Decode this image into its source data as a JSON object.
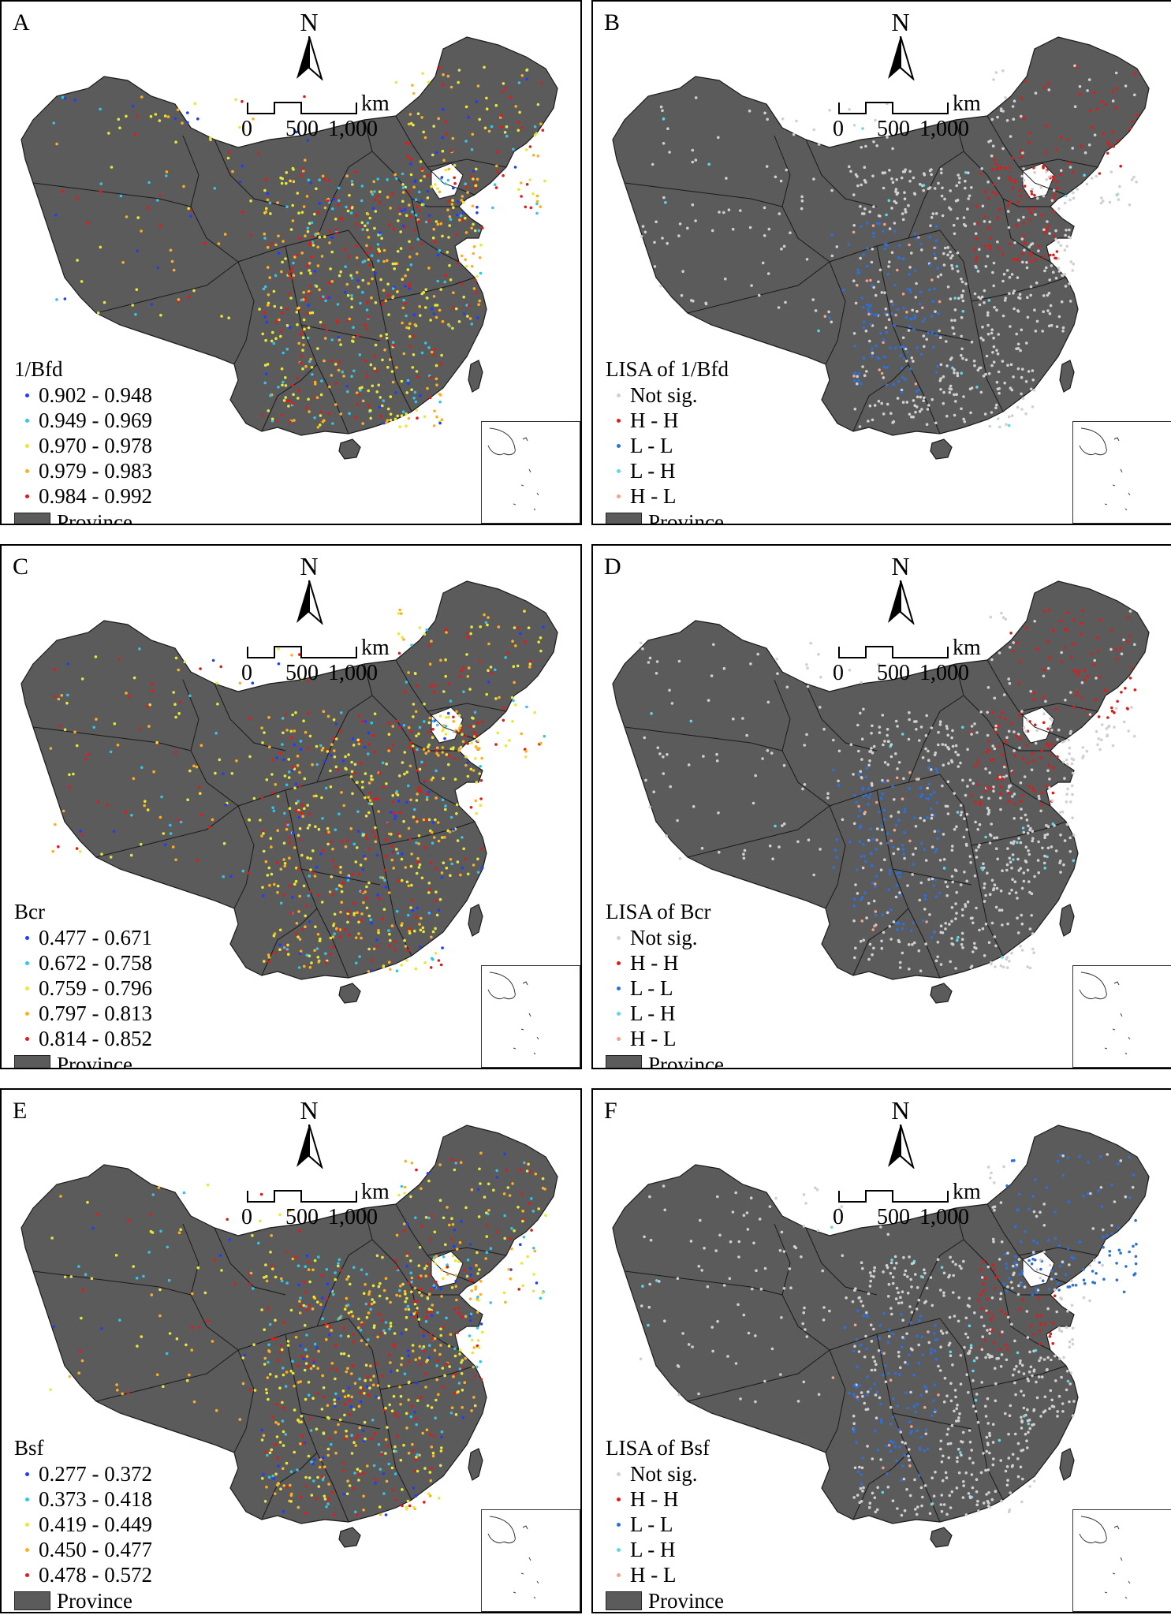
{
  "compass_label": "N",
  "scale": {
    "unit": "km",
    "ticks": [
      "0",
      "500",
      "1,000"
    ]
  },
  "province_label": "Province",
  "colors": {
    "land": "#5b5b5b",
    "border": "#1a1a1a",
    "blue": "#1f3cff",
    "cyan": "#33c4e8",
    "yellow": "#e8e83a",
    "orange": "#ffb020",
    "red": "#e21a1a",
    "notsig": "#d0d0d0",
    "hh": "#d91e1e",
    "ll": "#2f6fd8",
    "lh": "#5fd8ea",
    "hl": "#f2a38a"
  },
  "panels": [
    {
      "letter": "A",
      "legend_title": "1/Bfd",
      "items": [
        {
          "label": "0.902 - 0.948",
          "color": "blue"
        },
        {
          "label": "0.949 - 0.969",
          "color": "cyan"
        },
        {
          "label": "0.970 - 0.978",
          "color": "yellow"
        },
        {
          "label": "0.979 - 0.983",
          "color": "orange"
        },
        {
          "label": "0.984 - 0.992",
          "color": "red"
        }
      ]
    },
    {
      "letter": "B",
      "legend_title": "LISA of 1/Bfd",
      "items": [
        {
          "label": "Not sig.",
          "color": "notsig"
        },
        {
          "label": "H - H",
          "color": "hh"
        },
        {
          "label": "L - L",
          "color": "ll"
        },
        {
          "label": "L - H",
          "color": "lh"
        },
        {
          "label": "H - L",
          "color": "hl"
        }
      ]
    },
    {
      "letter": "C",
      "legend_title": "Bcr",
      "items": [
        {
          "label": "0.477 - 0.671",
          "color": "blue"
        },
        {
          "label": "0.672 - 0.758",
          "color": "cyan"
        },
        {
          "label": "0.759 - 0.796",
          "color": "yellow"
        },
        {
          "label": "0.797 - 0.813",
          "color": "orange"
        },
        {
          "label": "0.814 - 0.852",
          "color": "red"
        }
      ]
    },
    {
      "letter": "D",
      "legend_title": "LISA of Bcr",
      "items": [
        {
          "label": "Not sig.",
          "color": "notsig"
        },
        {
          "label": "H - H",
          "color": "hh"
        },
        {
          "label": "L - L",
          "color": "ll"
        },
        {
          "label": "L - H",
          "color": "lh"
        },
        {
          "label": "H - L",
          "color": "hl"
        }
      ]
    },
    {
      "letter": "E",
      "legend_title": "Bsf",
      "items": [
        {
          "label": "0.277 - 0.372",
          "color": "blue"
        },
        {
          "label": "0.373 - 0.418",
          "color": "cyan"
        },
        {
          "label": "0.419 - 0.449",
          "color": "yellow"
        },
        {
          "label": "0.450 - 0.477",
          "color": "orange"
        },
        {
          "label": "0.478 - 0.572",
          "color": "red"
        }
      ]
    },
    {
      "letter": "F",
      "legend_title": "LISA of Bsf",
      "items": [
        {
          "label": "Not sig.",
          "color": "notsig"
        },
        {
          "label": "H - H",
          "color": "hh"
        },
        {
          "label": "L - L",
          "color": "ll"
        },
        {
          "label": "L - H",
          "color": "lh"
        },
        {
          "label": "H - L",
          "color": "hl"
        }
      ]
    }
  ]
}
